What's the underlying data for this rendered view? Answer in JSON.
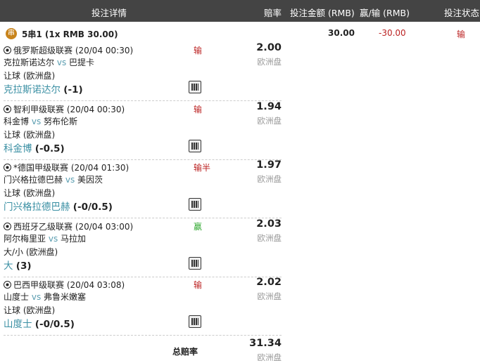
{
  "header": {
    "details": "投注详情",
    "odds": "赔率",
    "stake": "投注金额 (RMB)",
    "winloss": "赢/输 (RMB)",
    "status": "投注状态"
  },
  "summary": {
    "badge": "串",
    "title": "5串1 (1x RMB 30.00)",
    "stake": "30.00",
    "winloss": "-30.00",
    "status": "输"
  },
  "legs": [
    {
      "league": "俄罗斯超级联赛 (20/04 00:30)",
      "home": "克拉斯诺达尔",
      "vs": "vs",
      "away": "巴提卡",
      "market": "让球 (欧洲盘)",
      "pick": "克拉斯诺达尔",
      "line": "(-1)",
      "result": "输",
      "odds": "2.00",
      "odds_type": "欧洲盘"
    },
    {
      "league": "智利甲级联赛 (20/04 00:30)",
      "home": "科金博",
      "vs": "vs",
      "away": "努布伦斯",
      "market": "让球 (欧洲盘)",
      "pick": "科金博",
      "line": "(-0.5)",
      "result": "输",
      "odds": "1.94",
      "odds_type": "欧洲盘"
    },
    {
      "league": "*德国甲级联赛 (20/04 01:30)",
      "home": "门兴格拉德巴赫",
      "vs": "vs",
      "away": "美因茨",
      "market": "让球 (欧洲盘)",
      "pick": "门兴格拉德巴赫",
      "line": "(-0/0.5)",
      "result": "输半",
      "odds": "1.97",
      "odds_type": "欧洲盘"
    },
    {
      "league": "西班牙乙级联赛 (20/04 03:00)",
      "home": "阿尔梅里亚",
      "vs": "vs",
      "away": "马拉加",
      "market": "大/小 (欧洲盘)",
      "pick": "大",
      "line": "(3)",
      "result": "赢",
      "odds": "2.03",
      "odds_type": "欧洲盘"
    },
    {
      "league": "巴西甲级联赛 (20/04 03:08)",
      "home": "山度士",
      "vs": "vs",
      "away": "弗鲁米嫩塞",
      "market": "让球 (欧洲盘)",
      "pick": "山度士",
      "line": "(-0/0.5)",
      "result": "输",
      "odds": "2.02",
      "odds_type": "欧洲盘"
    }
  ],
  "total": {
    "label": "总赔率",
    "odds": "31.34",
    "odds_type": "欧洲盘"
  },
  "colors": {
    "header_bg": "#444444",
    "loss": "#bb2222",
    "win": "#33aa33",
    "team_link": "#3a8fa3",
    "badge": "#c8841c"
  }
}
